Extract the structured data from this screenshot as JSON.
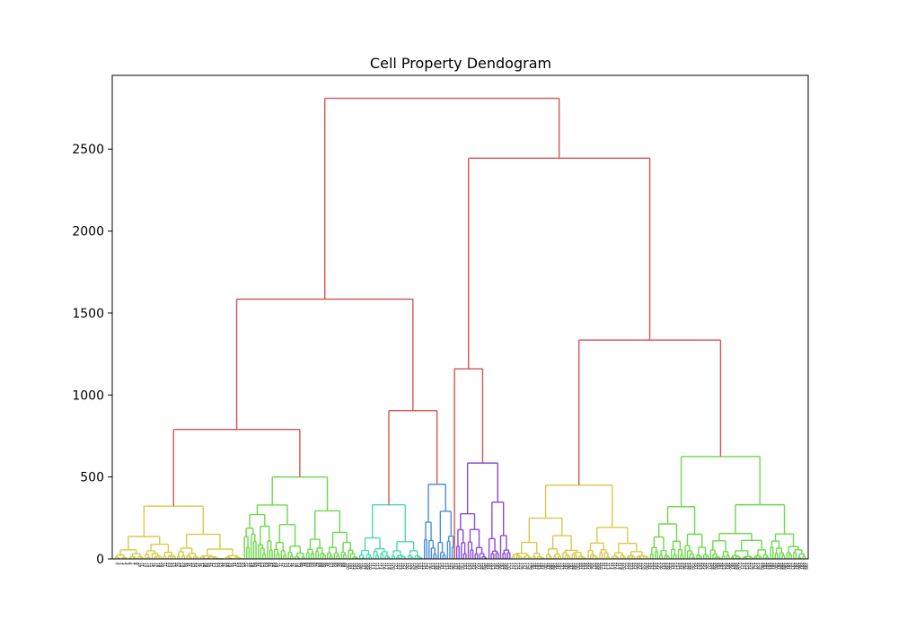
{
  "chart_data": {
    "type": "dendrogram",
    "title": "Cell Property Dendogram",
    "xlabel": "",
    "ylabel": "",
    "ylim": [
      0,
      2950
    ],
    "yticks": [
      0,
      500,
      1000,
      1500,
      2000,
      2500
    ],
    "leaf_count": 300,
    "colors": {
      "link_above_threshold": "#d9534f",
      "clusters": [
        "#d6c94a",
        "#6cd94a",
        "#4ad9b0",
        "#4a8fd9",
        "#8a4ad9",
        "#d6c94a",
        "#6cd94a"
      ]
    },
    "clusters": [
      {
        "color": "#d6c94a",
        "leaves": [
          0,
          56
        ],
        "top": 322
      },
      {
        "color": "#6cd94a",
        "leaves": [
          56,
          106
        ],
        "top": 500
      },
      {
        "color": "#4ad9b0",
        "leaves": [
          106,
          134
        ],
        "top": 330
      },
      {
        "color": "#4a8fd9",
        "leaves": [
          134,
          148
        ],
        "top": 455
      },
      {
        "color": "#8a4ad9",
        "leaves": [
          148,
          172
        ],
        "top": 585
      },
      {
        "color": "#d6c94a",
        "leaves": [
          172,
          232
        ],
        "top": 450
      },
      {
        "color": "#6cd94a",
        "leaves": [
          232,
          300
        ],
        "top": 625
      }
    ],
    "merges": [
      {
        "left": "c0",
        "right": "c1",
        "height": 790
      },
      {
        "left": "c2",
        "right": "c3",
        "height": 905
      },
      {
        "left": "m0",
        "right": "m1",
        "height": 1585
      },
      {
        "left": "c4a",
        "right": "c4",
        "height": 1160
      },
      {
        "left": "c5",
        "right": "c6",
        "height": 1335
      },
      {
        "left": "m3",
        "right": "m4",
        "height": 2445
      },
      {
        "left": "m2",
        "right": "m5",
        "height": 2810
      }
    ]
  }
}
